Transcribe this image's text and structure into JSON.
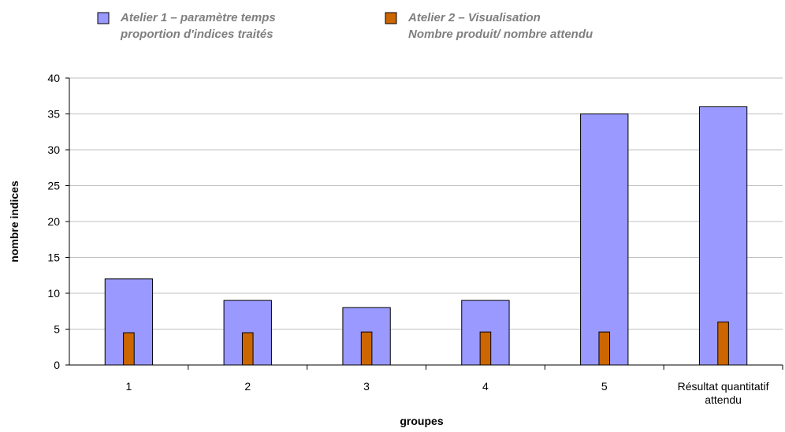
{
  "chart_data": {
    "type": "bar",
    "title": "",
    "xlabel": "groupes",
    "ylabel": "nombre indices",
    "ylim": [
      0,
      40
    ],
    "yticks": [
      0,
      5,
      10,
      15,
      20,
      25,
      30,
      35,
      40
    ],
    "grid": true,
    "legend_position": "top",
    "categories": [
      "1",
      "2",
      "3",
      "4",
      "5",
      "Résultat quantitatif attendu"
    ],
    "series": [
      {
        "name": "Atelier 1 – paramètre temps proportion d'indices traités",
        "legend_lines": [
          "Atelier 1 – paramètre temps",
          "proportion d'indices traités"
        ],
        "color": "#9999ff",
        "values": [
          12,
          9,
          8,
          9,
          35,
          36
        ]
      },
      {
        "name": "Atelier 2 – Visualisation Nombre produit/ nombre attendu",
        "legend_lines": [
          "Atelier 2 – Visualisation",
          "Nombre produit/ nombre attendu"
        ],
        "color": "#cc6600",
        "values": [
          4.5,
          4.5,
          4.6,
          4.6,
          4.6,
          6
        ]
      }
    ]
  }
}
